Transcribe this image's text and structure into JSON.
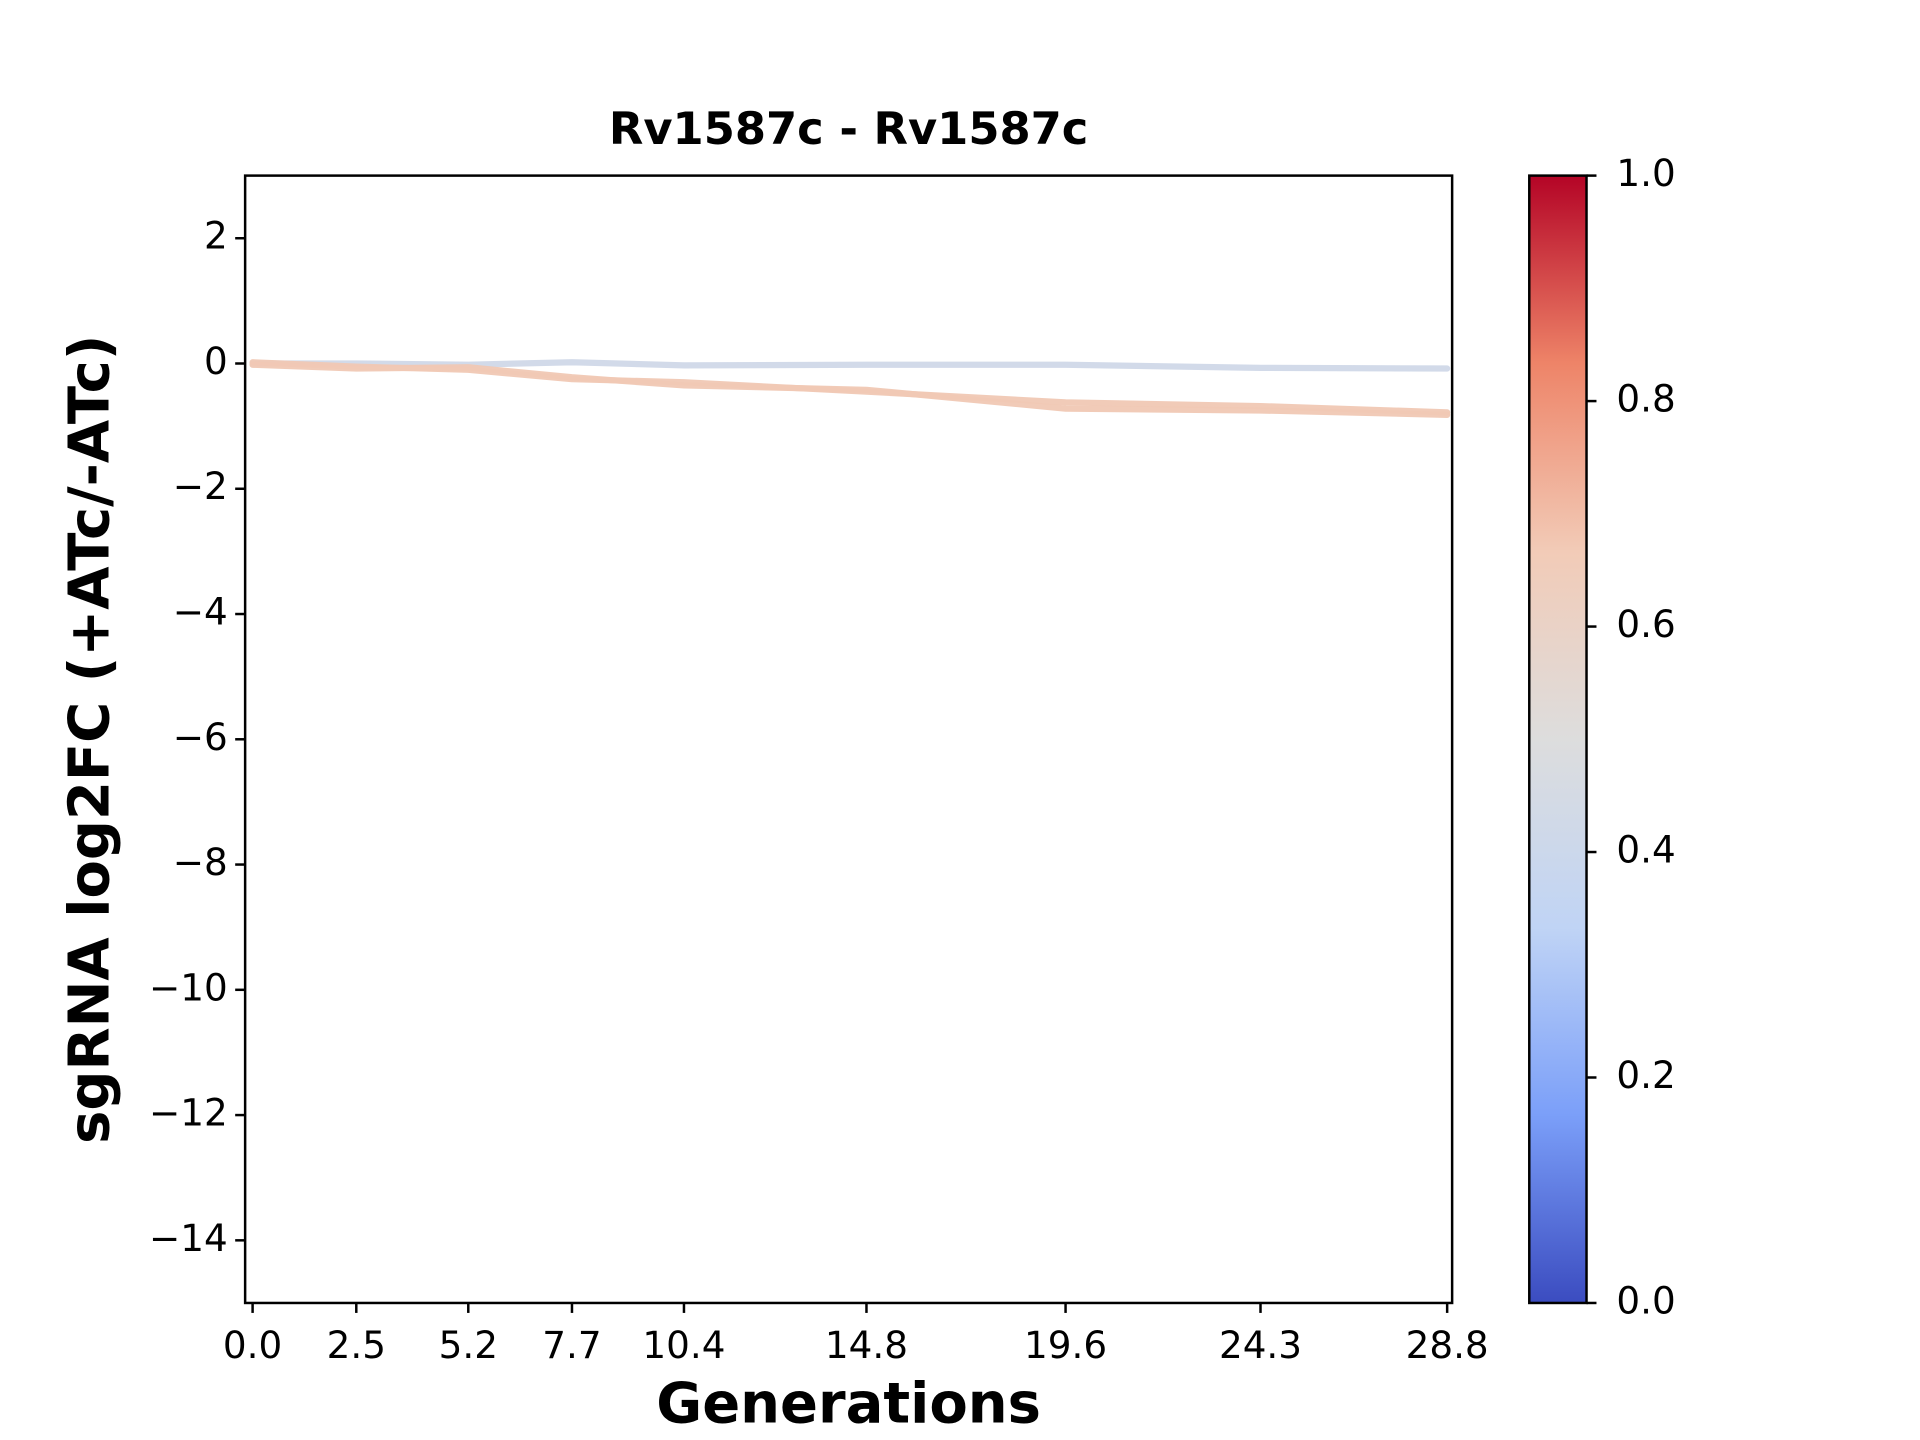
{
  "chart_data": {
    "type": "line",
    "title": "Rv1587c - Rv1587c",
    "x_label": "Generations",
    "y_label": "sgRNA log2FC (+ATc/-ATc)",
    "x": [
      0,
      2.5,
      5.2,
      7.7,
      10.4,
      14.8,
      19.6,
      24.3,
      28.8
    ],
    "series": [
      {
        "color": "#d0d8e8",
        "values": [
          0.0,
          0.0,
          -0.02,
          0.02,
          -0.03,
          -0.02,
          -0.02,
          -0.07,
          -0.08
        ]
      },
      {
        "color": "#f0c8b4",
        "values": [
          0.02,
          -0.05,
          -0.1,
          -0.25,
          -0.3,
          -0.45,
          -0.62,
          -0.68,
          -0.78
        ]
      },
      {
        "color": "#f0c8b4",
        "values": [
          -0.02,
          -0.08,
          -0.06,
          -0.22,
          -0.35,
          -0.42,
          -0.72,
          -0.75,
          -0.82
        ]
      }
    ],
    "xlim": [
      -0.18,
      28.92
    ],
    "xticks": [
      {
        "value": 0,
        "label": "0.0"
      },
      2.5,
      5.2,
      7.7,
      10.4,
      14.8,
      19.6,
      24.3,
      28.8
    ],
    "ylim": [
      -15,
      3
    ],
    "yticks": [
      {
        "value": -14,
        "label": "−14"
      },
      {
        "value": -12,
        "label": "−12"
      },
      {
        "value": -10,
        "label": "−10"
      },
      {
        "value": -8,
        "label": "−8"
      },
      {
        "value": -6,
        "label": "−6"
      },
      {
        "value": -4,
        "label": "−4"
      },
      {
        "value": -2,
        "label": "−2"
      },
      0,
      2
    ],
    "grid": false,
    "colorbar": {
      "lim": [
        0,
        1
      ],
      "ticks": [
        {
          "value": 0,
          "label": "0.0"
        },
        0.2,
        0.4,
        0.6,
        0.8,
        {
          "value": 1,
          "label": "1.0"
        }
      ],
      "colors": [
        "#3b4cc0",
        "#7b9ff9",
        "#c0d4f5",
        "#dddddd",
        "#f2cbb7",
        "#ee8468",
        "#b40426"
      ]
    }
  }
}
